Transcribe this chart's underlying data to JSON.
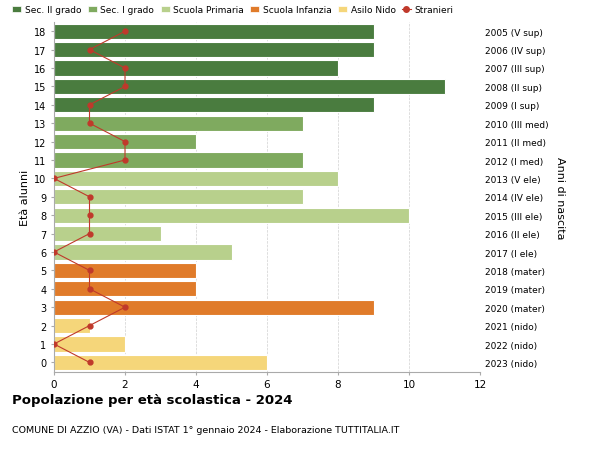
{
  "ages": [
    18,
    17,
    16,
    15,
    14,
    13,
    12,
    11,
    10,
    9,
    8,
    7,
    6,
    5,
    4,
    3,
    2,
    1,
    0
  ],
  "right_labels": [
    "2005 (V sup)",
    "2006 (IV sup)",
    "2007 (III sup)",
    "2008 (II sup)",
    "2009 (I sup)",
    "2010 (III med)",
    "2011 (II med)",
    "2012 (I med)",
    "2013 (V ele)",
    "2014 (IV ele)",
    "2015 (III ele)",
    "2016 (II ele)",
    "2017 (I ele)",
    "2018 (mater)",
    "2019 (mater)",
    "2020 (mater)",
    "2021 (nido)",
    "2022 (nido)",
    "2023 (nido)"
  ],
  "bar_values": [
    9,
    9,
    8,
    11,
    9,
    7,
    4,
    7,
    8,
    7,
    10,
    3,
    5,
    4,
    4,
    9,
    1,
    2,
    6
  ],
  "bar_colors": [
    "#4a7c3f",
    "#4a7c3f",
    "#4a7c3f",
    "#4a7c3f",
    "#4a7c3f",
    "#7faa5f",
    "#7faa5f",
    "#7faa5f",
    "#b8d08c",
    "#b8d08c",
    "#b8d08c",
    "#b8d08c",
    "#b8d08c",
    "#e07b2a",
    "#e07b2a",
    "#e07b2a",
    "#f5d67a",
    "#f5d67a",
    "#f5d67a"
  ],
  "stranieri_x": [
    2,
    1,
    2,
    2,
    1,
    1,
    2,
    2,
    0,
    1,
    1,
    1,
    0,
    1,
    1,
    2,
    1,
    0,
    1
  ],
  "legend_labels": [
    "Sec. II grado",
    "Sec. I grado",
    "Scuola Primaria",
    "Scuola Infanzia",
    "Asilo Nido",
    "Stranieri"
  ],
  "legend_colors": [
    "#4a7c3f",
    "#7faa5f",
    "#b8d08c",
    "#e07b2a",
    "#f5d67a",
    "#c0392b"
  ],
  "title": "Popolazione per età scolastica - 2024",
  "subtitle": "COMUNE DI AZZIO (VA) - Dati ISTAT 1° gennaio 2024 - Elaborazione TUTTITALIA.IT",
  "ylabel_left": "Età alunni",
  "ylabel_right": "Anni di nascita",
  "xlim": [
    0,
    12
  ],
  "xticks": [
    0,
    2,
    4,
    6,
    8,
    10,
    12
  ],
  "background_color": "#ffffff",
  "grid_color": "#d0d0d0"
}
